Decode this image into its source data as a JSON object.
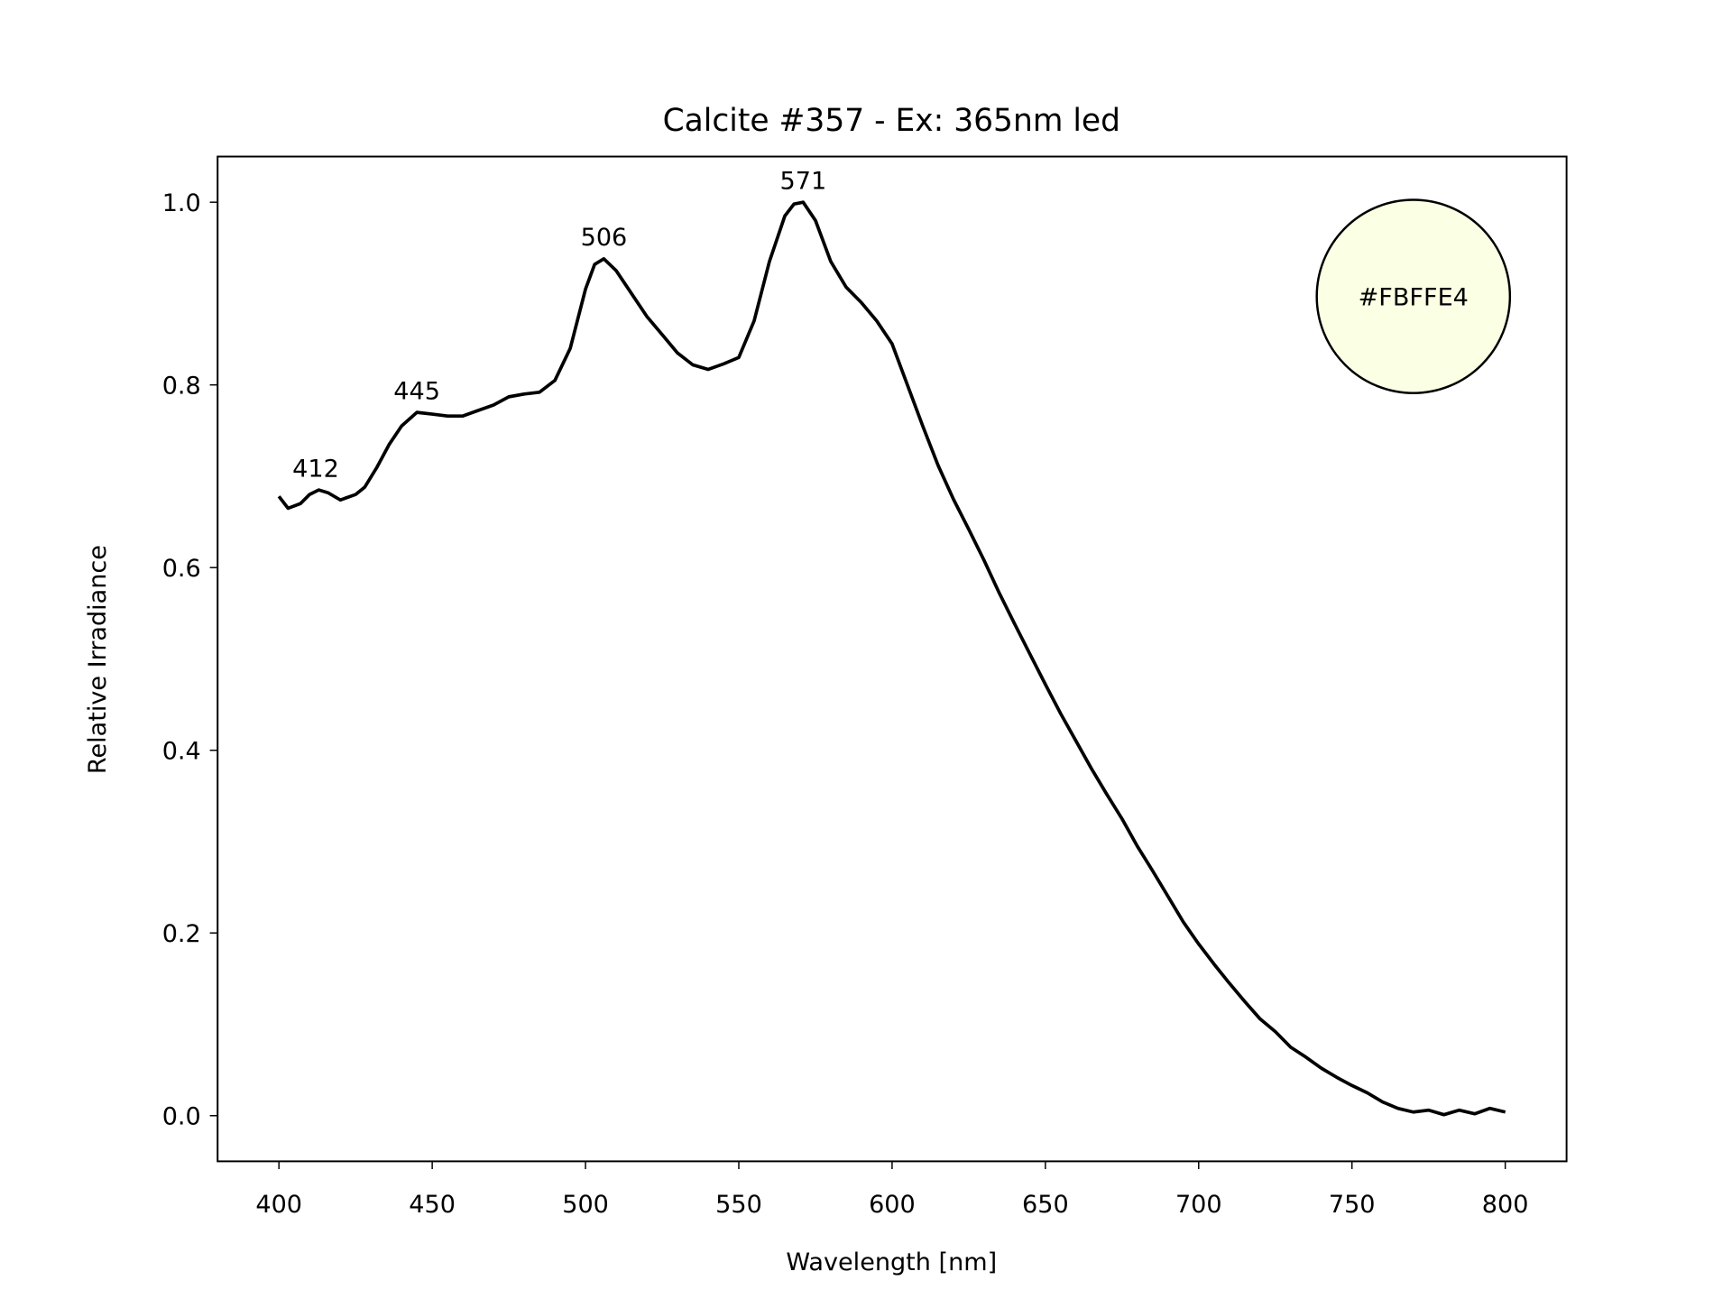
{
  "chart_data": {
    "type": "line",
    "title": "Calcite #357 - Ex: 365nm led",
    "xlabel": "Wavelength [nm]",
    "ylabel": "Relative Irradiance",
    "xlim": [
      380,
      820
    ],
    "ylim": [
      -0.05,
      1.05
    ],
    "grid": false,
    "xticks": [
      400,
      450,
      500,
      550,
      600,
      650,
      700,
      750,
      800
    ],
    "xtick_labels": [
      "400",
      "450",
      "500",
      "550",
      "600",
      "650",
      "700",
      "750",
      "800"
    ],
    "yticks": [
      0.0,
      0.2,
      0.4,
      0.6,
      0.8,
      1.0
    ],
    "ytick_labels": [
      "0.0",
      "0.2",
      "0.4",
      "0.6",
      "0.8",
      "1.0"
    ],
    "series": [
      {
        "name": "spectrum",
        "color": "#000000",
        "x": [
          400,
          403,
          407,
          410,
          413,
          416,
          420,
          425,
          428,
          432,
          436,
          440,
          445,
          450,
          455,
          460,
          465,
          470,
          475,
          480,
          485,
          490,
          495,
          500,
          503,
          506,
          510,
          515,
          520,
          525,
          530,
          535,
          540,
          545,
          550,
          555,
          560,
          565,
          568,
          571,
          575,
          580,
          585,
          590,
          595,
          600,
          605,
          610,
          615,
          620,
          625,
          630,
          635,
          640,
          645,
          650,
          655,
          660,
          665,
          670,
          675,
          680,
          685,
          690,
          695,
          700,
          705,
          710,
          715,
          720,
          725,
          730,
          735,
          740,
          745,
          750,
          755,
          760,
          765,
          770,
          775,
          780,
          785,
          790,
          795,
          800
        ],
        "y": [
          0.678,
          0.665,
          0.67,
          0.68,
          0.685,
          0.682,
          0.674,
          0.68,
          0.688,
          0.71,
          0.735,
          0.755,
          0.77,
          0.768,
          0.766,
          0.766,
          0.772,
          0.778,
          0.787,
          0.79,
          0.792,
          0.805,
          0.84,
          0.905,
          0.932,
          0.938,
          0.925,
          0.9,
          0.875,
          0.855,
          0.835,
          0.822,
          0.817,
          0.823,
          0.83,
          0.87,
          0.935,
          0.985,
          0.998,
          1.0,
          0.98,
          0.935,
          0.907,
          0.89,
          0.87,
          0.845,
          0.8,
          0.755,
          0.712,
          0.675,
          0.642,
          0.608,
          0.572,
          0.538,
          0.505,
          0.472,
          0.44,
          0.41,
          0.38,
          0.352,
          0.325,
          0.295,
          0.268,
          0.24,
          0.212,
          0.188,
          0.166,
          0.145,
          0.125,
          0.106,
          0.092,
          0.075,
          0.064,
          0.052,
          0.042,
          0.033,
          0.025,
          0.015,
          0.008,
          0.004,
          0.006,
          0.001,
          0.006,
          0.002,
          0.008,
          0.004
        ]
      }
    ],
    "annotations": [
      {
        "text": "412",
        "x": 412,
        "y": 0.685
      },
      {
        "text": "445",
        "x": 445,
        "y": 0.77
      },
      {
        "text": "506",
        "x": 506,
        "y": 0.938
      },
      {
        "text": "571",
        "x": 571,
        "y": 1.0
      }
    ],
    "color_swatch": {
      "label": "#FBFFE4",
      "color": "#FBFFE4"
    }
  }
}
